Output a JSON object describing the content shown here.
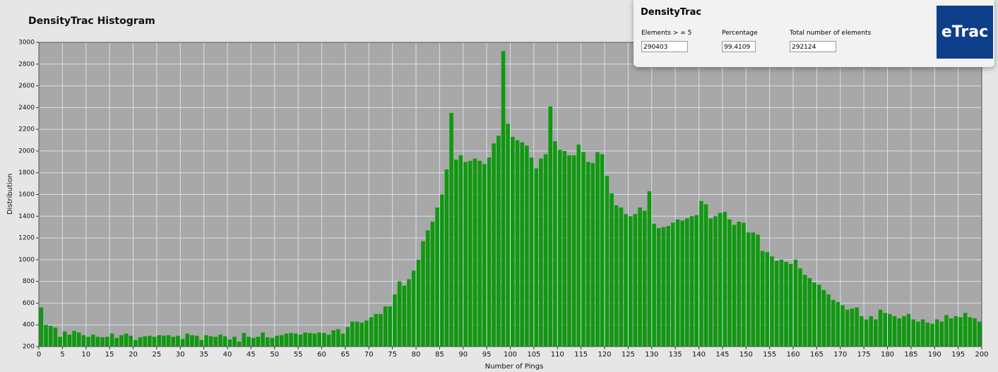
{
  "chart_data": {
    "type": "bar",
    "title": "DensityTrac Histogram",
    "xlabel": "Number of Pings",
    "ylabel": "Distribution",
    "color": "#109910",
    "x": [
      1,
      2,
      3,
      4,
      5,
      6,
      7,
      8,
      9,
      10,
      11,
      12,
      13,
      14,
      15,
      16,
      17,
      18,
      19,
      20,
      21,
      22,
      23,
      24,
      25,
      26,
      27,
      28,
      29,
      30,
      31,
      32,
      33,
      34,
      35,
      36,
      37,
      38,
      39,
      40,
      41,
      42,
      43,
      44,
      45,
      46,
      47,
      48,
      49,
      50,
      51,
      52,
      53,
      54,
      55,
      56,
      57,
      58,
      59,
      60,
      61,
      62,
      63,
      64,
      65,
      66,
      67,
      68,
      69,
      70,
      71,
      72,
      73,
      74,
      75,
      76,
      77,
      78,
      79,
      80,
      81,
      82,
      83,
      84,
      85,
      86,
      87,
      88,
      89,
      90,
      91,
      92,
      93,
      94,
      95,
      96,
      97,
      98,
      99,
      100,
      101,
      102,
      103,
      104,
      105,
      106,
      107,
      108,
      109,
      110,
      111,
      112,
      113,
      114,
      115,
      116,
      117,
      118,
      119,
      120,
      121,
      122,
      123,
      124,
      125,
      126,
      127,
      128,
      129,
      130,
      131,
      132,
      133,
      134,
      135,
      136,
      137,
      138,
      139,
      140,
      141,
      142,
      143,
      144,
      145,
      146,
      147,
      148,
      149,
      150,
      151,
      152,
      153,
      154,
      155,
      156,
      157,
      158,
      159,
      160,
      161,
      162,
      163,
      164,
      165,
      166,
      167,
      168,
      169,
      170,
      171,
      172,
      173,
      174,
      175,
      176,
      177,
      178,
      179,
      180,
      181,
      182,
      183,
      184,
      185,
      186,
      187,
      188,
      189,
      190,
      191,
      192,
      193,
      194,
      195,
      196,
      197,
      198,
      199,
      200
    ],
    "values": [
      560,
      400,
      390,
      375,
      290,
      340,
      310,
      345,
      330,
      305,
      290,
      310,
      290,
      285,
      290,
      320,
      280,
      305,
      320,
      300,
      260,
      285,
      295,
      300,
      290,
      305,
      300,
      305,
      290,
      300,
      270,
      320,
      305,
      300,
      260,
      305,
      295,
      290,
      310,
      295,
      265,
      290,
      245,
      325,
      290,
      280,
      290,
      330,
      285,
      280,
      300,
      305,
      320,
      325,
      320,
      310,
      330,
      325,
      320,
      330,
      325,
      310,
      350,
      360,
      320,
      380,
      430,
      430,
      420,
      440,
      470,
      500,
      500,
      570,
      570,
      680,
      800,
      760,
      820,
      900,
      1000,
      1170,
      1270,
      1350,
      1480,
      1600,
      1830,
      2350,
      1920,
      1960,
      1900,
      1910,
      1930,
      1910,
      1880,
      1940,
      2070,
      2140,
      2920,
      2250,
      2130,
      2100,
      2080,
      2050,
      1940,
      1840,
      1930,
      1970,
      2410,
      2090,
      2010,
      2000,
      1960,
      1960,
      2060,
      1990,
      1900,
      1890,
      1990,
      1970,
      1770,
      1610,
      1500,
      1480,
      1420,
      1400,
      1420,
      1480,
      1450,
      1630,
      1330,
      1290,
      1300,
      1310,
      1340,
      1370,
      1360,
      1380,
      1400,
      1410,
      1540,
      1510,
      1380,
      1400,
      1430,
      1440,
      1370,
      1320,
      1350,
      1340,
      1250,
      1250,
      1230,
      1080,
      1070,
      1030,
      990,
      1000,
      980,
      960,
      1000,
      920,
      860,
      830,
      790,
      770,
      720,
      680,
      630,
      610,
      580,
      540,
      550,
      560,
      480,
      450,
      480,
      450,
      540,
      510,
      500,
      480,
      460,
      480,
      500,
      450,
      430,
      450,
      420,
      410,
      450,
      430,
      490,
      460,
      480,
      470,
      510,
      470,
      460,
      430
    ],
    "xlim": [
      0,
      200
    ],
    "xticks": [
      0,
      5,
      10,
      15,
      20,
      25,
      30,
      35,
      40,
      45,
      50,
      55,
      60,
      65,
      70,
      75,
      80,
      85,
      90,
      95,
      100,
      105,
      110,
      115,
      120,
      125,
      130,
      135,
      140,
      145,
      150,
      155,
      160,
      165,
      170,
      175,
      180,
      185,
      190,
      195,
      200
    ],
    "ylim": [
      200,
      3000
    ],
    "yticks": [
      200,
      400,
      600,
      800,
      1000,
      1200,
      1400,
      1600,
      1800,
      2000,
      2200,
      2400,
      2600,
      2800,
      3000
    ],
    "grid": true
  },
  "panel": {
    "title": "DensityTrac",
    "fields": [
      {
        "label": "Elements > = 5",
        "value": "290403"
      },
      {
        "label": "Percentage",
        "value": "99.4109"
      },
      {
        "label": "Total number of elements",
        "value": "292124"
      }
    ],
    "logo": "eTrac"
  }
}
